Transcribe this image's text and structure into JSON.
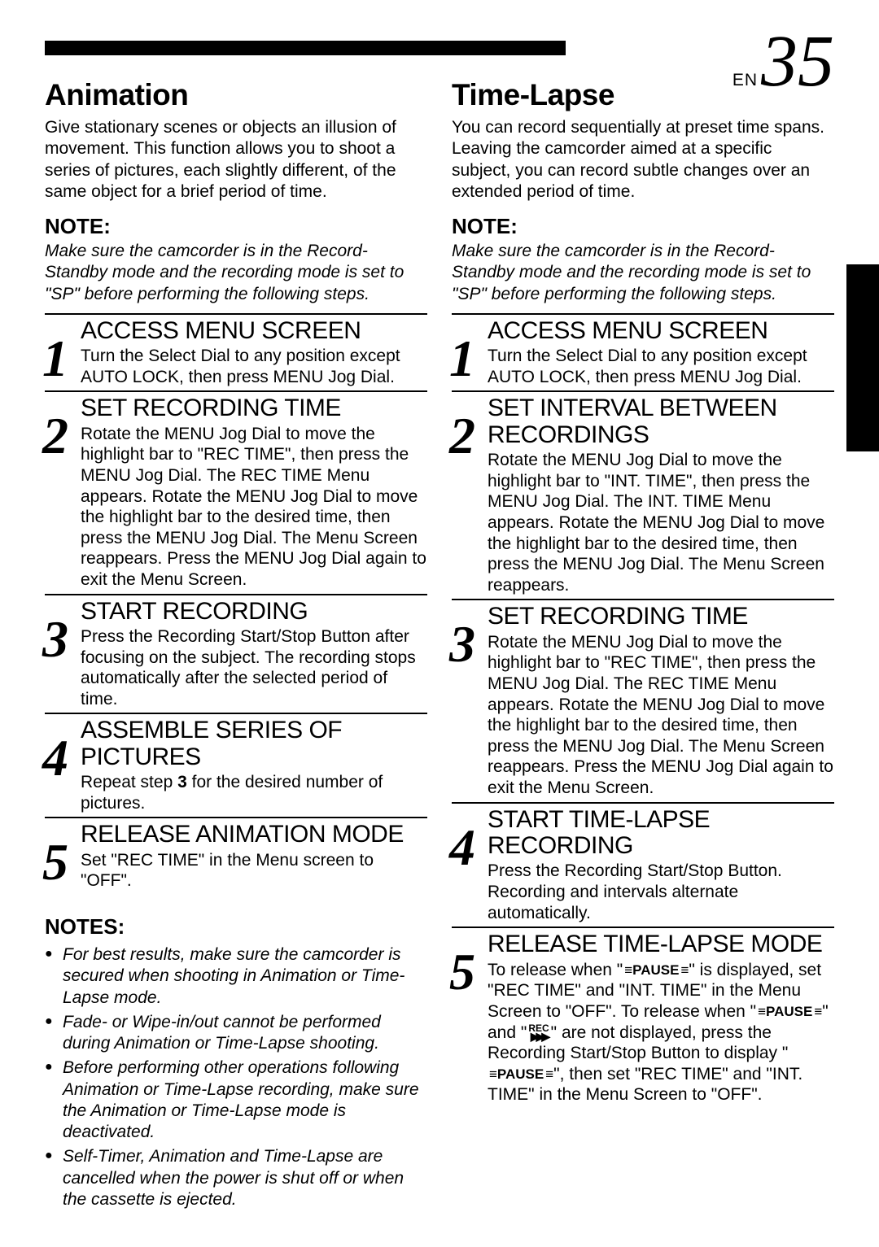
{
  "page": {
    "en": "EN",
    "num": "35"
  },
  "left": {
    "heading": "Animation",
    "intro": "Give stationary scenes or objects an illusion of movement. This function allows you to shoot a series of pictures, each slightly different, of the same object for a brief period of time.",
    "noteHead": "NOTE:",
    "noteBody": "Make sure the camcorder is in the Record-Standby mode and the recording mode is set to \"SP\" before performing the following steps.",
    "steps": [
      {
        "n": "1",
        "title": "ACCESS MENU SCREEN",
        "body": "Turn the Select Dial to any position except AUTO LOCK, then press MENU Jog Dial."
      },
      {
        "n": "2",
        "title": "SET RECORDING TIME",
        "body": "Rotate the MENU Jog Dial to move the highlight bar to \"REC TIME\", then press the MENU Jog Dial. The REC TIME Menu appears. Rotate the MENU Jog Dial to move the highlight bar to the desired time, then press the MENU Jog Dial. The Menu Screen reappears. Press the MENU Jog Dial again to exit the Menu Screen."
      },
      {
        "n": "3",
        "title": "START RECORDING",
        "body": "Press the Recording Start/Stop Button after focusing on the subject. The recording stops automatically after the selected period of time."
      },
      {
        "n": "4",
        "title": "ASSEMBLE SERIES OF PICTURES",
        "body_pre": "Repeat step ",
        "body_bold": "3",
        "body_post": " for the desired number of pictures."
      },
      {
        "n": "5",
        "title": "RELEASE ANIMATION MODE",
        "body": "Set \"REC TIME\" in the Menu screen to \"OFF\"."
      }
    ],
    "notesHead": "NOTES:",
    "notes": [
      "For best results, make sure the camcorder is secured when shooting in Animation or Time-Lapse mode.",
      "Fade- or Wipe-in/out cannot be performed during Animation or Time-Lapse shooting.",
      "Before performing other operations following Animation or Time-Lapse recording, make sure the Animation or Time-Lapse mode is deactivated.",
      "Self-Timer, Animation and Time-Lapse are cancelled when the power is shut off or when the cassette is ejected."
    ]
  },
  "right": {
    "heading": "Time-Lapse",
    "intro": "You can record sequentially at preset time spans. Leaving the camcorder aimed at a specific subject, you can record subtle changes over an extended period of time.",
    "noteHead": "NOTE:",
    "noteBody": "Make sure the camcorder is in the Record-Standby mode and the recording mode is set to \"SP\" before performing the following steps.",
    "steps": [
      {
        "n": "1",
        "title": "ACCESS MENU SCREEN",
        "body": "Turn the Select Dial to any position except AUTO LOCK, then press MENU Jog Dial."
      },
      {
        "n": "2",
        "title": "SET INTERVAL BETWEEN RECORDINGS",
        "body": "Rotate the MENU Jog Dial to move the highlight bar to \"INT. TIME\", then press the MENU Jog Dial. The INT. TIME Menu appears. Rotate the MENU Jog Dial to move the highlight bar to the desired time, then press the MENU Jog Dial. The Menu Screen reappears."
      },
      {
        "n": "3",
        "title": "SET RECORDING TIME",
        "body": "Rotate the MENU Jog Dial to move the highlight bar to \"REC TIME\", then press the MENU Jog Dial. The REC TIME Menu appears. Rotate the MENU Jog Dial to move the highlight bar to the desired time, then press the MENU Jog Dial. The Menu Screen reappears. Press the MENU Jog Dial again to exit the Menu Screen."
      },
      {
        "n": "4",
        "title": "START TIME-LAPSE RECORDING",
        "body": "Press the Recording Start/Stop Button. Recording and intervals alternate automatically."
      },
      {
        "n": "5",
        "title": "RELEASE TIME-LAPSE MODE",
        "body_parts": {
          "p1": "To release when \"",
          "p2": "\" is displayed, set \"REC TIME\" and \"INT. TIME\" in the Menu Screen to \"OFF\". To release when \"",
          "p3": "\" and \"",
          "p4": "\" are not displayed, press the Recording Start/Stop Button to display \"",
          "p5": "\", then set \"REC TIME\" and \"INT. TIME\" in the Menu Screen to \"OFF\"."
        }
      }
    ]
  },
  "icons": {
    "pauseBars": "≡",
    "pauseText": "PAUSE",
    "recText": "REC",
    "recTri": "▶▶▶"
  }
}
